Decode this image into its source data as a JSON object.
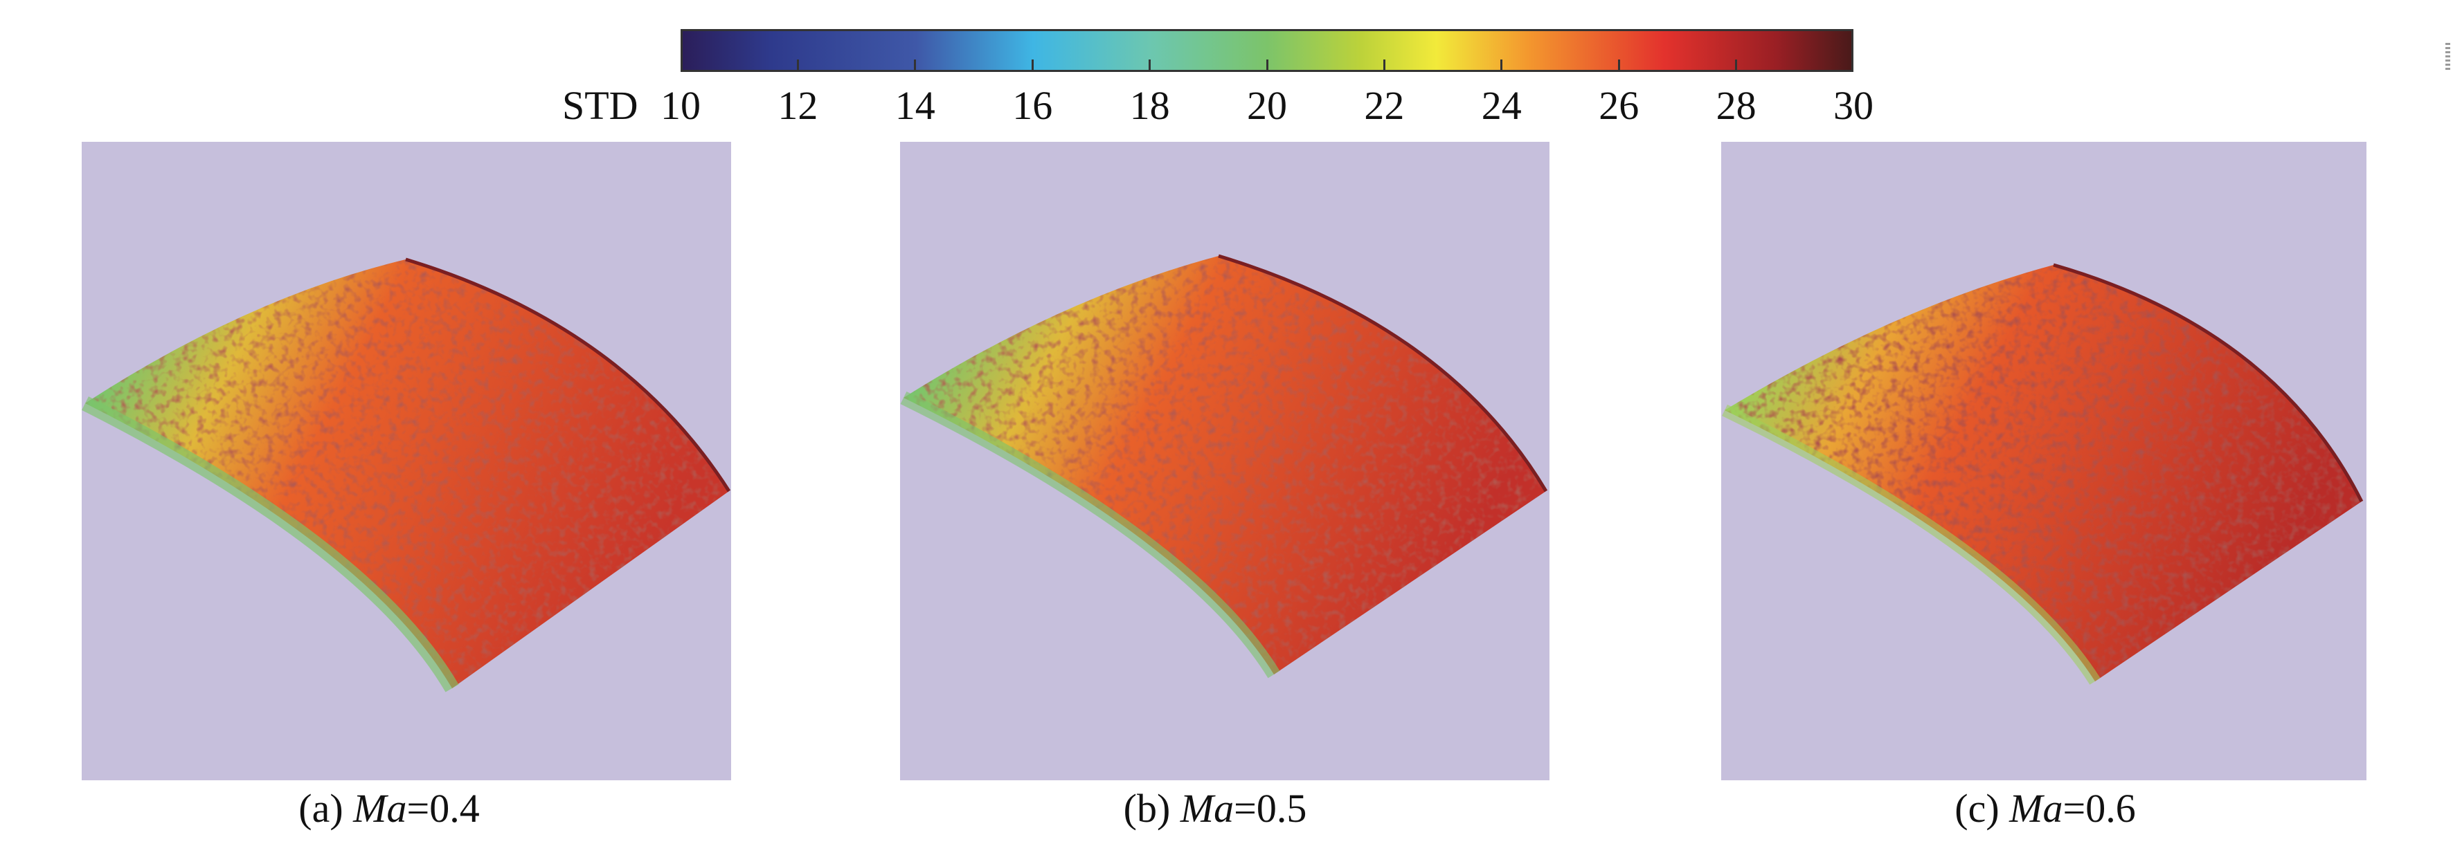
{
  "colorbar": {
    "title": "STD",
    "min": 10,
    "max": 30,
    "ticks": [
      "10",
      "12",
      "14",
      "16",
      "18",
      "20",
      "22",
      "24",
      "26",
      "28",
      "30"
    ],
    "colormap": [
      {
        "value": 10,
        "color": "#2b1e5a"
      },
      {
        "value": 11.5,
        "color": "#2e3a8c"
      },
      {
        "value": 14,
        "color": "#3f58a8"
      },
      {
        "value": 16,
        "color": "#3fb6e4"
      },
      {
        "value": 18,
        "color": "#6cc7b0"
      },
      {
        "value": 20,
        "color": "#7cc46a"
      },
      {
        "value": 21.6,
        "color": "#bcd23a"
      },
      {
        "value": 22.9,
        "color": "#f2ea3a"
      },
      {
        "value": 24.5,
        "color": "#f3962e"
      },
      {
        "value": 26.8,
        "color": "#e3322d"
      },
      {
        "value": 28.7,
        "color": "#9a1f24"
      },
      {
        "value": 30,
        "color": "#4a1a1a"
      }
    ]
  },
  "panels": [
    {
      "id": "a",
      "caption_prefix": "(a) ",
      "caption_var": "Ma",
      "caption_value": "=0.4",
      "mach": 0.4,
      "dominant_std_range": [
        24,
        28
      ],
      "low_std_edge": true
    },
    {
      "id": "b",
      "caption_prefix": "(b) ",
      "caption_var": "Ma",
      "caption_value": "=0.5",
      "mach": 0.5,
      "dominant_std_range": [
        24,
        28
      ],
      "low_std_edge": true
    },
    {
      "id": "c",
      "caption_prefix": "(c) ",
      "caption_var": "Ma",
      "caption_value": "=0.6",
      "mach": 0.6,
      "dominant_std_range": [
        25,
        29
      ],
      "low_std_edge": true
    }
  ],
  "colors": {
    "panel_background": "#c6bfdc",
    "surface_base": "#e8612a",
    "low_edge": "#6cc7b0"
  }
}
